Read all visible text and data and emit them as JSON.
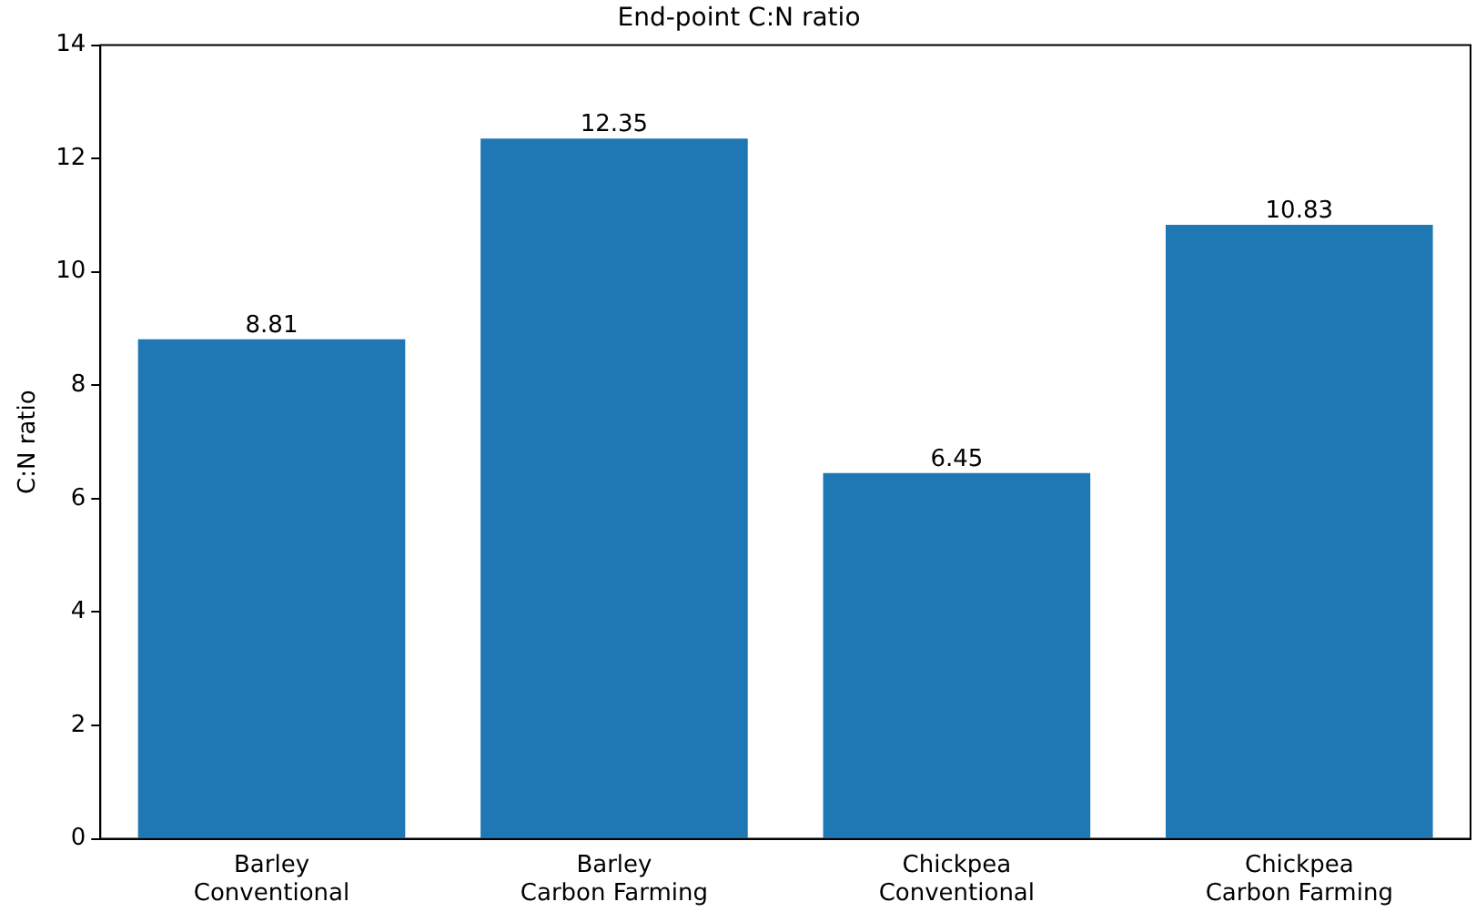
{
  "chart_data": {
    "type": "bar",
    "title": "End-point C:N ratio",
    "ylabel": "C:N ratio",
    "categories": [
      "Barley\nConventional",
      "Barley\nCarbon Farming",
      "Chickpea\nConventional",
      "Chickpea\nCarbon Farming"
    ],
    "values": [
      8.81,
      12.35,
      6.45,
      10.83
    ],
    "color": "#1f77b4",
    "ylim": [
      0,
      14
    ],
    "yticks": [
      0,
      2,
      4,
      6,
      8,
      10,
      12,
      14
    ],
    "grid": false,
    "legend": false,
    "data_labels": true
  }
}
